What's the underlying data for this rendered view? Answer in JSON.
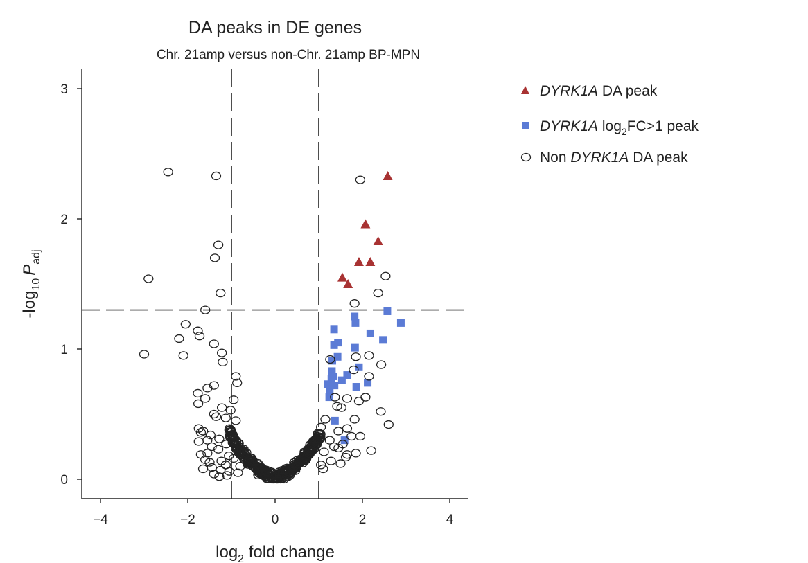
{
  "chart_data": {
    "type": "scatter",
    "title": "DA peaks in DE genes",
    "subtitle": "Chr. 21amp versus non-Chr. 21amp BP-MPN",
    "xlabel": "log2 fold change",
    "xlabel_main": "log",
    "xlabel_sub": "2",
    "xlabel_tail": " fold change",
    "ylabel": "-log10 P adj",
    "ylabel_main": "-log",
    "ylabel_sub": "10",
    "ylabel_italic": "P",
    "ylabel_sub2": "adj",
    "xlim": [
      -4.4,
      4.4
    ],
    "ylim": [
      -0.15,
      3.15
    ],
    "x_ticks": [
      -4,
      -2,
      0,
      2,
      4
    ],
    "x_tick_labels": [
      "−4",
      "−2",
      "0",
      "2",
      "4"
    ],
    "y_ticks": [
      0,
      1,
      2,
      3
    ],
    "y_tick_labels": [
      "0",
      "1",
      "2",
      "3"
    ],
    "thresholds": {
      "x": [
        -1,
        1
      ],
      "y": 1.3
    },
    "grid": false,
    "legend_position": "top-right",
    "legend": [
      {
        "italic": "DYRK1A",
        "text": " DA peak",
        "marker": "triangle",
        "color": "#a83232"
      },
      {
        "italic": "DYRK1A",
        "text_pre": " log",
        "sub": "2",
        "text_post": "FC>1 peak",
        "marker": "square",
        "color": "#5b7bd5"
      },
      {
        "pre": "Non ",
        "italic": "DYRK1A",
        "text": " DA peak",
        "marker": "circle",
        "color": "#222222"
      }
    ],
    "series": [
      {
        "name": "DYRK1A DA peak",
        "marker": "triangle",
        "color": "#a83232",
        "x": [
          2.58,
          2.07,
          2.36,
          1.92,
          2.18,
          1.54,
          1.67
        ],
        "y": [
          2.33,
          1.96,
          1.83,
          1.67,
          1.67,
          1.55,
          1.5
        ]
      },
      {
        "name": "DYRK1A log2FC>1 peak",
        "marker": "square",
        "color": "#5b7bd5",
        "x": [
          2.57,
          2.88,
          1.82,
          1.84,
          2.18,
          1.35,
          2.47,
          1.44,
          1.35,
          1.83,
          1.43,
          1.31,
          1.3,
          1.92,
          1.33,
          1.65,
          1.29,
          1.53,
          2.12,
          1.2,
          1.36,
          1.86,
          1.25,
          1.24,
          1.37,
          1.59
        ],
        "y": [
          1.29,
          1.2,
          1.25,
          1.2,
          1.12,
          1.15,
          1.07,
          1.05,
          1.03,
          1.01,
          0.94,
          0.91,
          0.83,
          0.86,
          0.79,
          0.8,
          0.77,
          0.76,
          0.74,
          0.73,
          0.72,
          0.71,
          0.67,
          0.63,
          0.45,
          0.3
        ]
      },
      {
        "name": "Non DYRK1A DA peak",
        "marker": "circle",
        "color": "#222222",
        "x": [
          -2.45,
          -1.35,
          -1.3,
          -1.38,
          -2.9,
          -1.25,
          -1.6,
          -2.05,
          -1.77,
          -1.73,
          -2.2,
          -1.4,
          -1.22,
          -2.1,
          -3.0,
          -1.2,
          -0.9,
          -0.87,
          -1.55,
          -1.4,
          -1.77,
          -1.6,
          -1.76,
          -0.95,
          -1.22,
          -1.02,
          -1.4,
          -1.35,
          -1.75,
          -1.7,
          -1.13,
          -0.9,
          -1.65,
          -1.48,
          -1.28,
          -1.55,
          -1.75,
          -1.45,
          -1.12,
          -0.85,
          -1.3,
          -0.82,
          -1.7,
          -1.55,
          -1.06,
          -0.95,
          -1.6,
          -1.5,
          -1.23,
          -1.13,
          -0.8,
          -1.65,
          -1.45,
          -1.25,
          -1.05,
          -0.85,
          -1.4,
          -1.1,
          -1.28,
          1.95,
          2.53,
          1.82,
          2.36,
          1.85,
          2.15,
          1.26,
          1.8,
          2.43,
          2.07,
          1.92,
          2.15,
          1.52,
          1.65,
          1.37,
          1.42,
          2.42,
          1.82,
          1.15,
          2.6,
          1.05,
          1.65,
          1.45,
          1.75,
          1.95,
          1.55,
          1.25,
          1.02,
          1.35,
          1.85,
          1.65,
          2.2,
          1.12,
          1.45,
          1.62,
          1.28,
          1.5,
          1.05,
          1.1
        ],
        "y": [
          2.36,
          2.33,
          1.8,
          1.7,
          1.54,
          1.43,
          1.3,
          1.19,
          1.14,
          1.1,
          1.08,
          1.04,
          0.97,
          0.95,
          0.96,
          0.9,
          0.79,
          0.74,
          0.7,
          0.72,
          0.66,
          0.62,
          0.58,
          0.61,
          0.55,
          0.53,
          0.5,
          0.48,
          0.39,
          0.36,
          0.47,
          0.45,
          0.37,
          0.34,
          0.31,
          0.3,
          0.29,
          0.25,
          0.27,
          0.28,
          0.23,
          0.21,
          0.19,
          0.2,
          0.18,
          0.16,
          0.15,
          0.13,
          0.14,
          0.11,
          0.1,
          0.08,
          0.09,
          0.07,
          0.06,
          0.05,
          0.04,
          0.03,
          0.02,
          2.3,
          1.56,
          1.35,
          1.43,
          0.94,
          0.95,
          0.92,
          0.84,
          0.88,
          0.63,
          0.6,
          0.79,
          0.55,
          0.62,
          0.63,
          0.56,
          0.52,
          0.46,
          0.46,
          0.42,
          0.4,
          0.39,
          0.37,
          0.33,
          0.33,
          0.27,
          0.3,
          0.35,
          0.25,
          0.2,
          0.19,
          0.22,
          0.21,
          0.24,
          0.17,
          0.14,
          0.12,
          0.11,
          0.08
        ]
      }
    ]
  }
}
